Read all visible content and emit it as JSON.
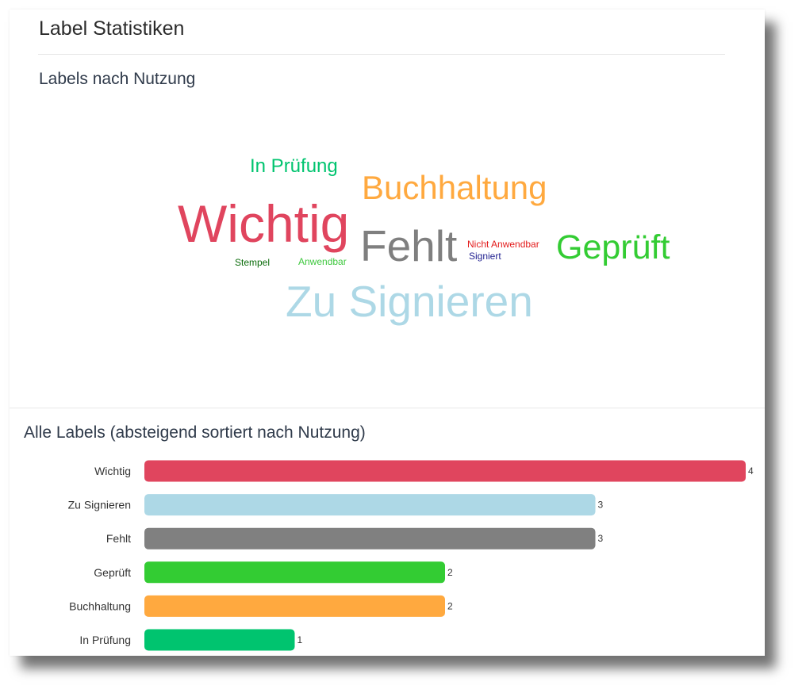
{
  "page": {
    "title": "Label Statistiken"
  },
  "wordcloud": {
    "title": "Labels nach Nutzung",
    "words": [
      {
        "text": "In Prüfung",
        "color": "#00c46f"
      },
      {
        "text": "Buchhaltung",
        "color": "#ffa93f"
      },
      {
        "text": "Wichtig",
        "color": "#e0455e"
      },
      {
        "text": "Fehlt",
        "color": "#7f7f7f"
      },
      {
        "text": "Nicht Anwendbar",
        "color": "#e31b1b"
      },
      {
        "text": "Signiert",
        "color": "#1f1f8f"
      },
      {
        "text": "Geprüft",
        "color": "#33cc33"
      },
      {
        "text": "Stempel",
        "color": "#0a6b0a"
      },
      {
        "text": "Anwendbar",
        "color": "#3fc83f"
      },
      {
        "text": "Zu Signieren",
        "color": "#add8e6"
      }
    ]
  },
  "chart_data": {
    "type": "bar",
    "orientation": "horizontal",
    "title": "Alle Labels (absteigend sortiert nach Nutzung)",
    "categories": [
      "Wichtig",
      "Zu Signieren",
      "Fehlt",
      "Geprüft",
      "Buchhaltung",
      "In Prüfung"
    ],
    "values": [
      4,
      3,
      3,
      2,
      2,
      1
    ],
    "colors": [
      "#e0455e",
      "#add8e6",
      "#808080",
      "#33cc33",
      "#ffa93f",
      "#00c46f"
    ],
    "xlim": [
      0,
      4
    ],
    "grid": false,
    "legend": "none"
  }
}
